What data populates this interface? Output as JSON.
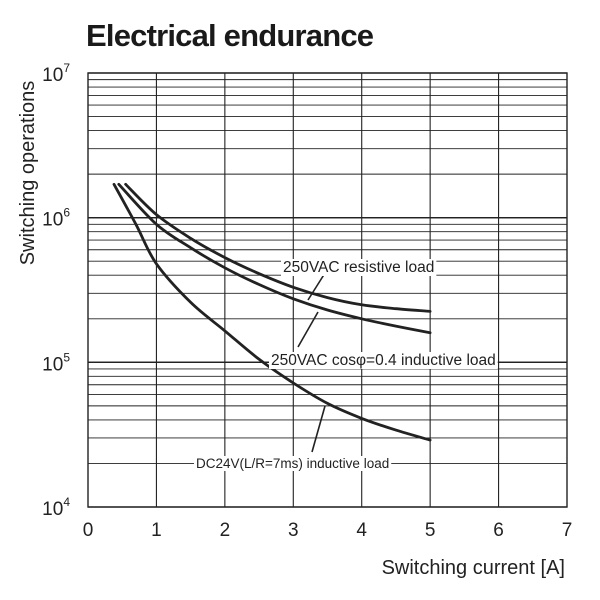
{
  "chart_data": {
    "type": "line",
    "title": "Electrical endurance",
    "xlabel": "Switching current [A]",
    "ylabel": "Switching operations",
    "xlim": [
      0,
      7
    ],
    "ylim": [
      10000,
      10000000
    ],
    "yscale": "log",
    "grid": true,
    "x_ticks": [
      "0",
      "1",
      "2",
      "3",
      "4",
      "5",
      "6",
      "7"
    ],
    "y_ticks": [
      {
        "base": "10",
        "exp": "4"
      },
      {
        "base": "10",
        "exp": "5"
      },
      {
        "base": "10",
        "exp": "6"
      },
      {
        "base": "10",
        "exp": "7"
      }
    ],
    "series": [
      {
        "name": "250VAC resistive load",
        "x": [
          0.55,
          1,
          1.5,
          2,
          2.5,
          3,
          3.5,
          4,
          4.5,
          5
        ],
        "y": [
          1700000,
          1050000,
          720000,
          530000,
          410000,
          330000,
          280000,
          250000,
          235000,
          225000
        ]
      },
      {
        "name": "250VAC cosφ=0.4 inductive load",
        "x": [
          0.45,
          1,
          1.5,
          2,
          2.5,
          3,
          3.5,
          4,
          4.5,
          5
        ],
        "y": [
          1700000,
          900000,
          620000,
          450000,
          345000,
          275000,
          230000,
          200000,
          178000,
          160000
        ]
      },
      {
        "name": "DC24V(L/R=7ms) inductive load",
        "x": [
          0.38,
          0.7,
          1,
          1.5,
          2,
          2.5,
          3,
          3.5,
          4,
          4.5,
          5
        ],
        "y": [
          1700000,
          900000,
          480000,
          260000,
          165000,
          105000,
          72000,
          52000,
          41000,
          34000,
          29000
        ]
      }
    ]
  }
}
